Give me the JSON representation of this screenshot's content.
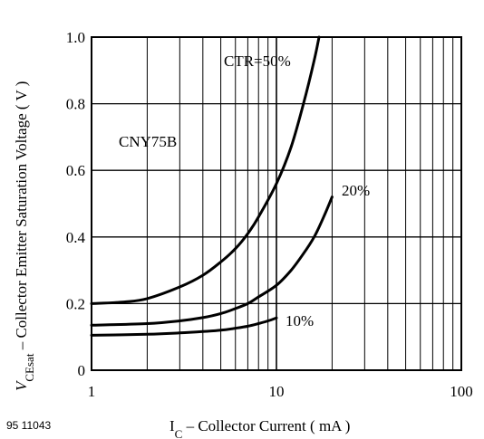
{
  "figure_id": "95 11043",
  "chart_data": {
    "type": "line",
    "xscale": "log",
    "xlim": [
      1,
      100
    ],
    "ylim": [
      0,
      1.0
    ],
    "grid": true,
    "x_ticks": [
      "1",
      "10",
      "100"
    ],
    "y_ticks": [
      "0",
      "0.2",
      "0.4",
      "0.6",
      "0.8",
      "1.0"
    ],
    "y_tick_values": [
      0,
      0.2,
      0.4,
      0.6,
      0.8,
      1.0
    ],
    "xlabel": {
      "main": "I",
      "sub": "C",
      "rest": " – Collector Current ( mA )"
    },
    "ylabel": {
      "main": "V",
      "sub": "CEsat",
      "rest": " – Collector Emitter Saturation Voltage ( V )"
    },
    "annotation": "CNY75B",
    "series": [
      {
        "name": "CTR=50%",
        "x": [
          1,
          1.5,
          2,
          3,
          4,
          5,
          6,
          7,
          8,
          10,
          12,
          14,
          16,
          17
        ],
        "y": [
          0.2,
          0.205,
          0.215,
          0.25,
          0.285,
          0.325,
          0.365,
          0.41,
          0.46,
          0.56,
          0.67,
          0.8,
          0.93,
          1.0
        ]
      },
      {
        "name": "20%",
        "x": [
          1,
          2,
          3,
          4,
          5,
          6,
          7,
          8,
          10,
          12,
          14,
          16,
          18,
          20
        ],
        "y": [
          0.135,
          0.14,
          0.148,
          0.158,
          0.17,
          0.185,
          0.2,
          0.22,
          0.255,
          0.3,
          0.35,
          0.4,
          0.46,
          0.52
        ]
      },
      {
        "name": "10%",
        "x": [
          1,
          2,
          3,
          4,
          5,
          6,
          7,
          8,
          9,
          10
        ],
        "y": [
          0.105,
          0.108,
          0.112,
          0.116,
          0.12,
          0.126,
          0.132,
          0.14,
          0.148,
          0.157
        ]
      }
    ]
  }
}
